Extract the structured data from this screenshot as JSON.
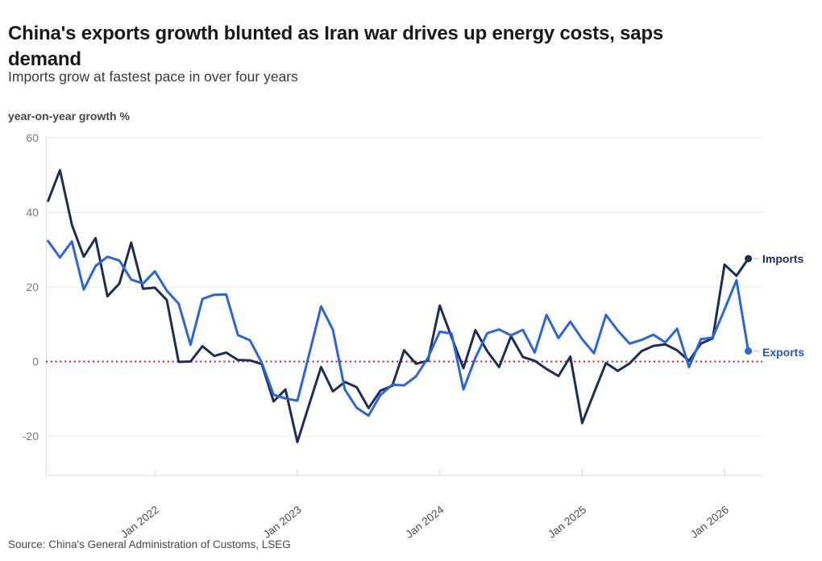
{
  "header": {
    "title_line1": "China's exports growth blunted as Iran war drives up energy costs, saps",
    "title_line2": "demand",
    "subtitle": "Imports grow at fastest pace in over four years"
  },
  "source": "Source: China's General Administration of Customs, LSEG",
  "legend": {
    "imports_label": "Imports",
    "exports_label": "Exports"
  },
  "colors": {
    "imports": "#1d2d55",
    "exports": "#2b64dd",
    "zero_line": "#c11422",
    "gridline": "#e9e9e9",
    "axis_line": "#dcdcdc",
    "tick_label": "#7a7a7a",
    "x_tick_label": "#4c4c4c"
  },
  "chart_data": {
    "type": "line",
    "title": "China's exports growth blunted as Iran war drives up energy costs, saps demand",
    "subtitle": "Imports grow at fastest pace in over four years",
    "ylabel": "year-on-year growth %",
    "xlabel": "",
    "ylim": [
      -30,
      60
    ],
    "y_ticks": [
      60,
      40,
      20,
      0,
      -20
    ],
    "x_tick_labels": [
      "Jan 2022",
      "Jan 2023",
      "Jan 2024",
      "Jan 2025",
      "Jan 2026"
    ],
    "zero_line": true,
    "grid": "horizontal",
    "legend_position": "end-of-line",
    "x": [
      "Apr 2021",
      "May 2021",
      "Jun 2021",
      "Jul 2021",
      "Aug 2021",
      "Sep 2021",
      "Oct 2021",
      "Nov 2021",
      "Dec 2021",
      "Jan 2022",
      "Feb 2022",
      "Mar 2022",
      "Apr 2022",
      "May 2022",
      "Jun 2022",
      "Jul 2022",
      "Aug 2022",
      "Sep 2022",
      "Oct 2022",
      "Nov 2022",
      "Dec 2022",
      "Jan 2023",
      "Feb 2023",
      "Mar 2023",
      "Apr 2023",
      "May 2023",
      "Jun 2023",
      "Jul 2023",
      "Aug 2023",
      "Sep 2023",
      "Oct 2023",
      "Nov 2023",
      "Dec 2023",
      "Jan 2024",
      "Feb 2024",
      "Mar 2024",
      "Apr 2024",
      "May 2024",
      "Jun 2024",
      "Jul 2024",
      "Aug 2024",
      "Sep 2024",
      "Oct 2024",
      "Nov 2024",
      "Dec 2024",
      "Jan 2025",
      "Feb 2025",
      "Mar 2025",
      "Apr 2025",
      "May 2025",
      "Jun 2025",
      "Jul 2025",
      "Aug 2025",
      "Sep 2025",
      "Oct 2025",
      "Nov 2025",
      "Dec 2025",
      "Jan 2026",
      "Feb 2026",
      "Mar 2026"
    ],
    "series": [
      {
        "name": "Imports",
        "color": "#1d2d55",
        "values": [
          43.1,
          51.3,
          36.7,
          28.1,
          33.1,
          17.5,
          20.9,
          31.9,
          19.5,
          19.8,
          16.5,
          -0.1,
          0.0,
          4.1,
          1.5,
          2.4,
          0.4,
          0.3,
          -0.7,
          -10.7,
          -7.5,
          -21.6,
          -11.5,
          -1.5,
          -8.0,
          -5.5,
          -6.9,
          -12.5,
          -7.8,
          -6.5,
          3.0,
          -0.6,
          0.2,
          15.0,
          6.5,
          -1.8,
          8.4,
          2.8,
          -1.5,
          6.8,
          1.2,
          0.2,
          -2.0,
          -3.9,
          1.3,
          -16.5,
          -8.4,
          -0.4,
          -2.5,
          -0.5,
          2.8,
          4.2,
          4.6,
          3.0,
          0.2,
          4.8,
          6.2,
          26.0,
          23.0,
          27.6
        ]
      },
      {
        "name": "Exports",
        "color": "#2b64dd",
        "values": [
          32.3,
          27.9,
          32.2,
          19.3,
          25.6,
          28.1,
          27.1,
          22.0,
          20.9,
          24.2,
          19.0,
          15.5,
          4.5,
          16.8,
          17.9,
          18.0,
          7.1,
          5.7,
          -0.3,
          -8.9,
          -9.9,
          -10.5,
          2.0,
          14.8,
          8.5,
          -7.5,
          -12.4,
          -14.5,
          -9.0,
          -6.2,
          -6.4,
          -4.0,
          1.0,
          8.0,
          7.5,
          -7.5,
          1.0,
          7.6,
          8.6,
          7.0,
          8.5,
          2.4,
          12.5,
          6.3,
          10.7,
          6.0,
          2.2,
          12.5,
          8.3,
          4.8,
          5.8,
          7.2,
          5.1,
          8.8,
          -1.5,
          6.0,
          6.4,
          14.0,
          21.8,
          2.8
        ]
      }
    ]
  }
}
